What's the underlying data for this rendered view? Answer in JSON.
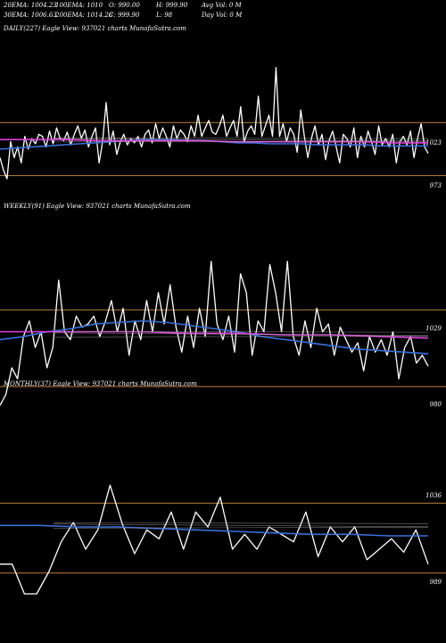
{
  "header": {
    "ema20": "20EMA: 1004.23",
    "ema100": "100EMA: 1010",
    "open": "O: 990.00",
    "high": "H: 999.90",
    "avgvol": "Avg Vol: 0  M",
    "ema30": "30EMA: 1006.63",
    "ema200": "200EMA: 1014.26",
    "close": "C: 999.90",
    "low": "L: 98",
    "dayvol": "Day Vol: 0  M"
  },
  "colors": {
    "price": "#ffffff",
    "ema_fast": "#3a6fd8",
    "ema_slow": "#e040e0",
    "grid": "#b87f3f",
    "ma_misc": "#aaaaaa"
  },
  "chart_data": [
    {
      "type": "line",
      "title": "DAILY(227) Eagle   View: 937021 charts MunafaSutra.com",
      "yticks": [
        "1023",
        "973"
      ],
      "ylim": [
        955,
        1105
      ],
      "guide_lines": [
        1023,
        973
      ],
      "series": [
        {
          "name": "price",
          "values": [
            990,
            978,
            970,
            1005,
            990,
            1000,
            985,
            1010,
            998,
            1008,
            1003,
            1012,
            1010,
            1000,
            1015,
            1003,
            1018,
            1008,
            1006,
            1014,
            1002,
            1012,
            1020,
            1008,
            1016,
            1000,
            1010,
            1018,
            985,
            1005,
            1042,
            1002,
            1015,
            993,
            1005,
            1012,
            1002,
            1008,
            1004,
            1010,
            1000,
            1012,
            1016,
            1004,
            1022,
            1008,
            1018,
            1010,
            1000,
            1020,
            1008,
            1016,
            1012,
            1005,
            1020,
            1010,
            1030,
            1010,
            1018,
            1025,
            1014,
            1012,
            1020,
            1030,
            1010,
            1018,
            1025,
            1010,
            1038,
            1005,
            1015,
            1020,
            1012,
            1048,
            1010,
            1020,
            1030,
            1010,
            1075,
            1010,
            1022,
            1005,
            1018,
            1012,
            995,
            1035,
            1010,
            990,
            1008,
            1020,
            1002,
            1012,
            988,
            1006,
            1015,
            1000,
            985,
            1012,
            1008,
            1000,
            1018,
            990,
            1010,
            1000,
            1015,
            1005,
            993,
            1020,
            1002,
            1008,
            1000,
            1012,
            985,
            1005,
            1010,
            1002,
            1015,
            990,
            1008,
            1022,
            1000,
            994
          ]
        },
        {
          "name": "ema_fast",
          "values": [
            998,
            999,
            1000,
            1001,
            1002,
            1003,
            1004,
            1005,
            1006,
            1007,
            1007,
            1007,
            1006,
            1006,
            1005,
            1004,
            1004,
            1003,
            1003,
            1003,
            1002,
            1002,
            1002,
            1002,
            1001,
            1001,
            1001,
            1001
          ]
        },
        {
          "name": "ema_slow",
          "values": [
            1007,
            1007,
            1007,
            1006,
            1006,
            1006,
            1006,
            1005,
            1005,
            1005,
            1005,
            1005,
            1004,
            1004
          ]
        }
      ]
    },
    {
      "type": "line",
      "title": "WEEKLY(91) Eagle   View: 937021 charts MunafaSutra.com",
      "yticks": [
        "1029",
        "980"
      ],
      "ylim": [
        960,
        1090
      ],
      "guide_lines": [
        1029,
        980
      ],
      "series": [
        {
          "name": "price",
          "values": [
            968,
            975,
            992,
            985,
            1012,
            1022,
            1005,
            1015,
            992,
            1005,
            1048,
            1015,
            1010,
            1025,
            1018,
            1020,
            1025,
            1012,
            1022,
            1035,
            1015,
            1030,
            1000,
            1022,
            1010,
            1035,
            1015,
            1040,
            1020,
            1045,
            1018,
            1002,
            1025,
            1005,
            1030,
            1012,
            1060,
            1020,
            1010,
            1025,
            1002,
            1052,
            1040,
            1000,
            1022,
            1015,
            1058,
            1040,
            1015,
            1060,
            1012,
            1000,
            1022,
            1005,
            1030,
            1015,
            1020,
            1000,
            1018,
            1010,
            1002,
            1008,
            990,
            1012,
            1002,
            1010,
            1000,
            1015,
            985,
            1005,
            1012,
            995,
            1000,
            993
          ]
        },
        {
          "name": "ema_fast",
          "values": [
            1010,
            1012,
            1015,
            1017,
            1020,
            1021,
            1022,
            1021,
            1019,
            1017,
            1015,
            1012,
            1010,
            1008,
            1006,
            1004,
            1003,
            1002,
            1001
          ]
        },
        {
          "name": "ema_slow",
          "values": [
            1015,
            1015,
            1015,
            1015,
            1014,
            1014,
            1013,
            1013,
            1012,
            1011
          ]
        }
      ]
    },
    {
      "type": "line",
      "title": "MONTHLY(37) Eagle   View: 937021 charts MunafaSutra.com",
      "yticks": [
        "1036",
        "989"
      ],
      "ylim": [
        960,
        1110
      ],
      "guide_lines": [
        1036,
        989
      ],
      "series": [
        {
          "name": "price",
          "values": [
            995,
            995,
            975,
            975,
            990,
            1010,
            1023,
            1005,
            1018,
            1048,
            1022,
            1002,
            1018,
            1012,
            1030,
            1005,
            1030,
            1020,
            1040,
            1005,
            1015,
            1005,
            1020,
            1015,
            1010,
            1030,
            1000,
            1020,
            1010,
            1020,
            998,
            1005,
            1012,
            1003,
            1018,
            995
          ]
        },
        {
          "name": "ema_fast",
          "values": [
            1021,
            1021,
            1020,
            1020,
            1019,
            1018,
            1017,
            1016,
            1015,
            1015,
            1014,
            1014
          ]
        }
      ]
    }
  ]
}
